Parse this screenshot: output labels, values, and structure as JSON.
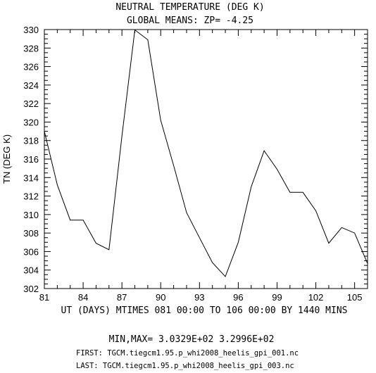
{
  "chart_data": {
    "type": "line",
    "title": "NEUTRAL TEMPERATURE (DEG K)",
    "subtitle": "GLOBAL MEANS: ZP= -4.25",
    "xlabel": "UT (DAYS) MTIMES 081 00:00 TO 106 00:00 BY 1440 MINS",
    "ylabel": "TN (DEG K)",
    "xlim": [
      81,
      106
    ],
    "ylim": [
      302,
      330
    ],
    "x_ticks": [
      "81",
      "84",
      "87",
      "90",
      "93",
      "96",
      "99",
      "102",
      "105"
    ],
    "y_ticks": [
      "302",
      "304",
      "306",
      "308",
      "310",
      "312",
      "314",
      "316",
      "318",
      "320",
      "322",
      "324",
      "326",
      "328",
      "330"
    ],
    "grid": false,
    "x": [
      81,
      82,
      83,
      84,
      85,
      86,
      87,
      88,
      89,
      90,
      91,
      92,
      93,
      94,
      95,
      96,
      97,
      98,
      99,
      100,
      101,
      102,
      103,
      104,
      105,
      106
    ],
    "values": [
      319.0,
      313.2,
      309.4,
      309.4,
      306.9,
      306.2,
      318.5,
      329.96,
      328.9,
      320.2,
      315.3,
      310.2,
      307.5,
      304.8,
      303.29,
      307.0,
      313.0,
      316.9,
      314.9,
      312.4,
      312.4,
      310.4,
      306.9,
      308.6,
      308.0,
      304.7
    ]
  },
  "footer": {
    "minmax": "MIN,MAX=  3.0329E+02  3.2996E+02",
    "first": "FIRST: TGCM.tiegcm1.95.p_whi2008_heelis_gpi_001.nc",
    "last": "LAST:  TGCM.tiegcm1.95.p_whi2008_heelis_gpi_003.nc"
  }
}
